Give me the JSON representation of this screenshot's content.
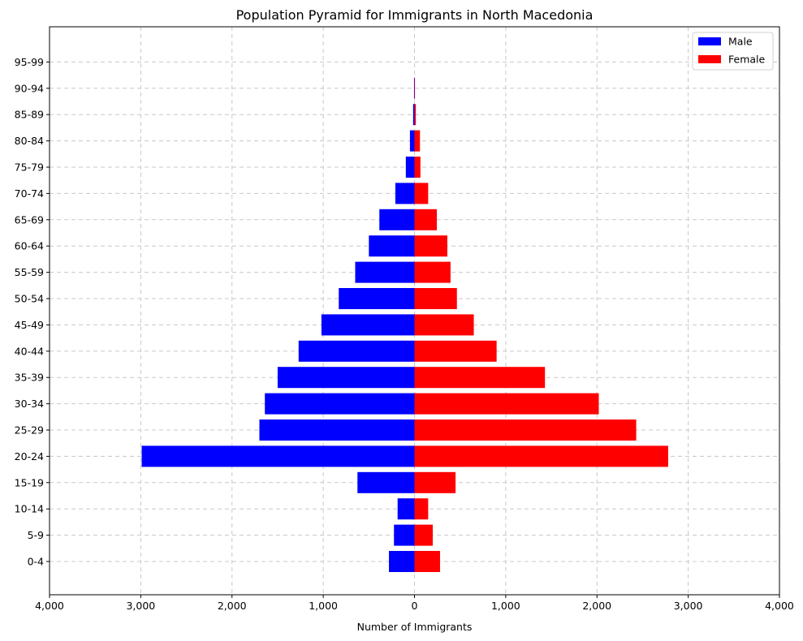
{
  "chart_data": {
    "type": "bar",
    "orientation": "horizontal",
    "title": "Population Pyramid for Immigrants in North Macedonia",
    "xlabel": "Number of Immigrants",
    "ylabel": "",
    "xlim": [
      -4000,
      4000
    ],
    "x_ticks": [
      -4000,
      -3000,
      -2000,
      -1000,
      0,
      1000,
      2000,
      3000,
      4000
    ],
    "x_tick_labels": [
      "4,000",
      "3,000",
      "2,000",
      "1,000",
      "0",
      "1,000",
      "2,000",
      "3,000",
      "4,000"
    ],
    "grid": true,
    "legend_position": "top-right",
    "categories": [
      "0-4",
      "5-9",
      "10-14",
      "15-19",
      "20-24",
      "25-29",
      "30-34",
      "35-39",
      "40-44",
      "45-49",
      "50-54",
      "55-59",
      "60-64",
      "65-69",
      "70-74",
      "75-79",
      "80-84",
      "85-89",
      "90-94",
      "95-99"
    ],
    "series": [
      {
        "name": "Male",
        "color": "#0000ff",
        "values": [
          280,
          225,
          185,
          625,
          2990,
          1700,
          1640,
          1500,
          1270,
          1020,
          830,
          650,
          500,
          385,
          210,
          95,
          50,
          15,
          5,
          0
        ]
      },
      {
        "name": "Female",
        "color": "#ff0000",
        "values": [
          280,
          200,
          150,
          450,
          2780,
          2430,
          2020,
          1430,
          900,
          650,
          465,
          395,
          360,
          245,
          150,
          65,
          60,
          15,
          5,
          0
        ]
      }
    ]
  }
}
